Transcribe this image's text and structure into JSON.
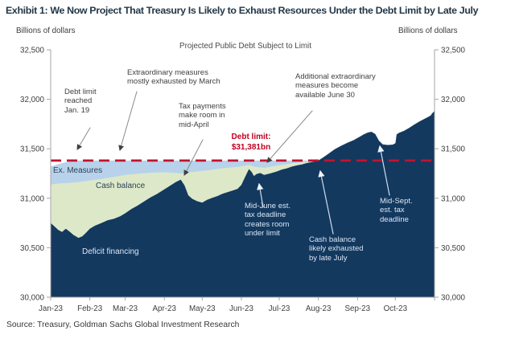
{
  "title": "Exhibit 1: We Now Project That Treasury Is Likely to Exhaust Resources Under the Debt Limit by Late July",
  "source": "Source: Treasury, Goldman Sachs Global Investment Research",
  "axis_unit_left": "Billions of dollars",
  "axis_unit_right": "Billions of dollars",
  "colors": {
    "navy": "#14395f",
    "green": "#dde8c9",
    "blue": "#b7d2ea",
    "debt_limit_line": "#c01330",
    "axis": "#a6a6a6",
    "dark_arrow": "#8a8a8a",
    "light_arrow": "#cfdcef"
  },
  "annotations": {
    "debt_limit_reached": "Debt limit\nreached\nJan. 19",
    "extraordinary": "Extraordinary measures\nmostly exhausted by March",
    "tax_april": "Tax payments\nmake room in\nmid-April",
    "additional": "Additional extraordinary\nmeasures become\navailable June 30",
    "debt_limit_label": "Debt limit:\n$31,381bn",
    "mid_june": "Mid-June est.\ntax deadline\ncreates room\nunder limit",
    "cash_exhausted": "Cash balance\nlikely exhausted\nby late July",
    "mid_sept": "Mid-Sept.\nest. tax\ndeadline"
  },
  "chart_data": {
    "type": "area",
    "subtitle": "Projected Public Debt Subject to Limit",
    "ylabel_left": "Billions of dollars",
    "ylabel_right": "Billions of dollars",
    "ylim": [
      30000,
      32500
    ],
    "y_ticks": [
      {
        "v": 32500,
        "label": "32,500"
      },
      {
        "v": 32000,
        "label": "32,000"
      },
      {
        "v": 31500,
        "label": "31,500"
      },
      {
        "v": 31000,
        "label": "31,000"
      },
      {
        "v": 30500,
        "label": "30,500"
      },
      {
        "v": 30000,
        "label": "30,000"
      }
    ],
    "x_unit": "days from Jan 1 2023",
    "x_domain": [
      0,
      304
    ],
    "x_month_days": [
      0,
      31,
      59,
      90,
      120,
      151,
      181,
      212,
      243,
      273,
      304
    ],
    "x_label_days": [
      0,
      31,
      59,
      90,
      120,
      151,
      181,
      212,
      243,
      273
    ],
    "x_tick_labels": [
      "Jan-23",
      "Feb-23",
      "Mar-23",
      "Apr-23",
      "May-23",
      "Jun-23",
      "Jul-23",
      "Aug-23",
      "Sep-23",
      "Oct-23"
    ],
    "grid": false,
    "legend": "labels drawn inside areas",
    "debt_limit": {
      "value": 31381,
      "label": "Debt limit: $31,381bn"
    },
    "series": [
      {
        "name": "Ex. Measures",
        "color": "#b7d2ea",
        "role": "top boundary of extraordinary-measures band (billions of dollars)",
        "points": [
          [
            0,
            31320
          ],
          [
            5,
            31340
          ],
          [
            10,
            31358
          ],
          [
            14,
            31372
          ],
          [
            18,
            31381
          ],
          [
            212,
            31381
          ]
        ]
      },
      {
        "name": "Cash balance",
        "color": "#dde8c9",
        "role": "top boundary of cash-balance band (billions of dollars)",
        "points": [
          [
            0,
            31140
          ],
          [
            8,
            31150
          ],
          [
            16,
            31156
          ],
          [
            24,
            31166
          ],
          [
            31,
            31180
          ],
          [
            40,
            31196
          ],
          [
            50,
            31216
          ],
          [
            59,
            31236
          ],
          [
            70,
            31250
          ],
          [
            80,
            31258
          ],
          [
            90,
            31262
          ],
          [
            97,
            31258
          ],
          [
            103,
            31250
          ],
          [
            109,
            31262
          ],
          [
            116,
            31270
          ],
          [
            124,
            31282
          ],
          [
            132,
            31296
          ],
          [
            140,
            31308
          ],
          [
            148,
            31316
          ],
          [
            154,
            31330
          ],
          [
            157,
            31336
          ],
          [
            161,
            31320
          ],
          [
            165,
            31312
          ],
          [
            169,
            31308
          ],
          [
            173,
            31316
          ],
          [
            179,
            31330
          ],
          [
            185,
            31342
          ],
          [
            191,
            31352
          ],
          [
            197,
            31362
          ],
          [
            203,
            31370
          ],
          [
            207,
            31375
          ],
          [
            212,
            31381
          ]
        ]
      },
      {
        "name": "Deficit financing",
        "color": "#14395f",
        "role": "debt outstanding / deficit financing line (billions of dollars)",
        "points": [
          [
            0,
            30750
          ],
          [
            3,
            30715
          ],
          [
            6,
            30680
          ],
          [
            9,
            30660
          ],
          [
            12,
            30692
          ],
          [
            15,
            30662
          ],
          [
            18,
            30630
          ],
          [
            22,
            30600
          ],
          [
            25,
            30615
          ],
          [
            28,
            30652
          ],
          [
            31,
            30692
          ],
          [
            35,
            30722
          ],
          [
            40,
            30748
          ],
          [
            45,
            30778
          ],
          [
            50,
            30792
          ],
          [
            55,
            30818
          ],
          [
            59,
            30848
          ],
          [
            64,
            30892
          ],
          [
            69,
            30928
          ],
          [
            74,
            30968
          ],
          [
            79,
            31008
          ],
          [
            84,
            31042
          ],
          [
            89,
            31082
          ],
          [
            94,
            31122
          ],
          [
            99,
            31162
          ],
          [
            103,
            31188
          ],
          [
            106,
            31130
          ],
          [
            109,
            31030
          ],
          [
            112,
            30995
          ],
          [
            116,
            30970
          ],
          [
            120,
            30955
          ],
          [
            124,
            30985
          ],
          [
            128,
            31005
          ],
          [
            132,
            31022
          ],
          [
            136,
            31045
          ],
          [
            140,
            31062
          ],
          [
            144,
            31078
          ],
          [
            148,
            31095
          ],
          [
            151,
            31135
          ],
          [
            154,
            31215
          ],
          [
            157,
            31295
          ],
          [
            159,
            31268
          ],
          [
            161,
            31225
          ],
          [
            163,
            31245
          ],
          [
            166,
            31255
          ],
          [
            169,
            31235
          ],
          [
            172,
            31245
          ],
          [
            175,
            31255
          ],
          [
            179,
            31270
          ],
          [
            183,
            31290
          ],
          [
            187,
            31302
          ],
          [
            191,
            31320
          ],
          [
            195,
            31332
          ],
          [
            199,
            31342
          ],
          [
            203,
            31356
          ],
          [
            207,
            31366
          ],
          [
            212,
            31381
          ],
          [
            216,
            31415
          ],
          [
            220,
            31450
          ],
          [
            225,
            31495
          ],
          [
            230,
            31530
          ],
          [
            235,
            31560
          ],
          [
            240,
            31588
          ],
          [
            244,
            31616
          ],
          [
            248,
            31645
          ],
          [
            251,
            31663
          ],
          [
            254,
            31672
          ],
          [
            257,
            31650
          ],
          [
            260,
            31580
          ],
          [
            263,
            31545
          ],
          [
            267,
            31538
          ],
          [
            271,
            31542
          ],
          [
            273,
            31556
          ],
          [
            274,
            31645
          ],
          [
            276,
            31662
          ],
          [
            280,
            31682
          ],
          [
            284,
            31712
          ],
          [
            288,
            31745
          ],
          [
            292,
            31775
          ],
          [
            296,
            31802
          ],
          [
            299,
            31822
          ],
          [
            301,
            31836
          ],
          [
            302,
            31856
          ],
          [
            304,
            31882
          ]
        ]
      }
    ]
  }
}
